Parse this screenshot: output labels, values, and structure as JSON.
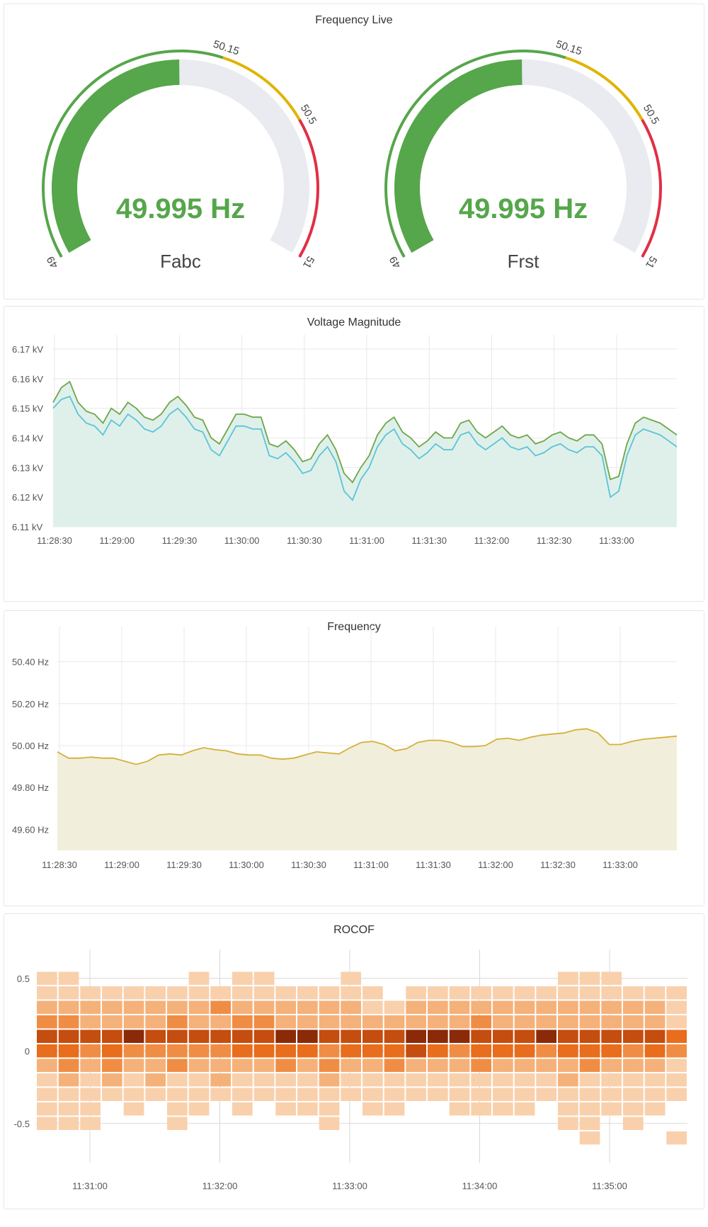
{
  "panels": {
    "gauges": {
      "title": "Frequency Live",
      "items": [
        {
          "name": "Fabc",
          "value_text": "49.995 Hz",
          "value": 49.995
        },
        {
          "name": "Frst",
          "value_text": "49.995 Hz",
          "value": 49.995
        }
      ],
      "min": 49,
      "max": 51,
      "thresholds": [
        {
          "from": 49,
          "to": 50.15,
          "color": "#56a64b"
        },
        {
          "from": 50.15,
          "to": 50.5,
          "color": "#e0b400"
        },
        {
          "from": 50.5,
          "to": 51,
          "color": "#e02f44"
        }
      ],
      "tick_labels": [
        {
          "value": 49,
          "text": "49"
        },
        {
          "value": 50.15,
          "text": "50.15"
        },
        {
          "value": 50.5,
          "text": "50.5"
        },
        {
          "value": 51,
          "text": "51"
        }
      ],
      "value_color": "#56a64b",
      "track_color": "#e9ebf0"
    },
    "voltage": {
      "title": "Voltage Magnitude"
    },
    "frequency": {
      "title": "Frequency"
    },
    "rocof": {
      "title": "ROCOF"
    }
  },
  "chart_data": [
    {
      "type": "line",
      "title": "Voltage Magnitude",
      "x_tick_labels": [
        "11:28:30",
        "11:29:00",
        "11:29:30",
        "11:30:00",
        "11:30:30",
        "11:31:00",
        "11:31:30",
        "11:32:00",
        "11:32:30",
        "11:33:00"
      ],
      "y_tick_labels": [
        "6.11 kV",
        "6.12 kV",
        "6.13 kV",
        "6.14 kV",
        "6.15 kV",
        "6.16 kV",
        "6.17 kV"
      ],
      "ylim": [
        6.11,
        6.17
      ],
      "grid": true,
      "fill": "#dff0ea",
      "series": [
        {
          "color": "#6ea64a",
          "values": [
            6.152,
            6.157,
            6.159,
            6.152,
            6.149,
            6.148,
            6.145,
            6.15,
            6.148,
            6.152,
            6.15,
            6.147,
            6.146,
            6.148,
            6.152,
            6.154,
            6.151,
            6.147,
            6.146,
            6.14,
            6.138,
            6.143,
            6.148,
            6.148,
            6.147,
            6.147,
            6.138,
            6.137,
            6.139,
            6.136,
            6.132,
            6.133,
            6.138,
            6.141,
            6.136,
            6.128,
            6.125,
            6.13,
            6.134,
            6.141,
            6.145,
            6.147,
            6.142,
            6.14,
            6.137,
            6.139,
            6.142,
            6.14,
            6.14,
            6.145,
            6.146,
            6.142,
            6.14,
            6.142,
            6.144,
            6.141,
            6.14,
            6.141,
            6.138,
            6.139,
            6.141,
            6.142,
            6.14,
            6.139,
            6.141,
            6.141,
            6.138,
            6.126,
            6.127,
            6.138,
            6.145,
            6.147,
            6.146,
            6.145,
            6.143,
            6.141
          ]
        },
        {
          "color": "#5bc4d6",
          "values": [
            6.15,
            6.153,
            6.154,
            6.148,
            6.145,
            6.144,
            6.141,
            6.146,
            6.144,
            6.148,
            6.146,
            6.143,
            6.142,
            6.144,
            6.148,
            6.15,
            6.147,
            6.143,
            6.142,
            6.136,
            6.134,
            6.139,
            6.144,
            6.144,
            6.143,
            6.143,
            6.134,
            6.133,
            6.135,
            6.132,
            6.128,
            6.129,
            6.134,
            6.137,
            6.132,
            6.122,
            6.119,
            6.126,
            6.13,
            6.137,
            6.141,
            6.143,
            6.138,
            6.136,
            6.133,
            6.135,
            6.138,
            6.136,
            6.136,
            6.141,
            6.142,
            6.138,
            6.136,
            6.138,
            6.14,
            6.137,
            6.136,
            6.137,
            6.134,
            6.135,
            6.137,
            6.138,
            6.136,
            6.135,
            6.137,
            6.137,
            6.134,
            6.12,
            6.122,
            6.134,
            6.141,
            6.143,
            6.142,
            6.141,
            6.139,
            6.137
          ]
        }
      ]
    },
    {
      "type": "area",
      "title": "Frequency",
      "x_tick_labels": [
        "11:28:30",
        "11:29:00",
        "11:29:30",
        "11:30:00",
        "11:30:30",
        "11:31:00",
        "11:31:30",
        "11:32:00",
        "11:32:30",
        "11:33:00"
      ],
      "y_tick_labels": [
        "49.60 Hz",
        "49.80 Hz",
        "50.00 Hz",
        "50.20 Hz",
        "50.40 Hz"
      ],
      "ylim": [
        49.5,
        50.5
      ],
      "grid": true,
      "fill": "#f1eedb",
      "series": [
        {
          "color": "#d4b13a",
          "values": [
            49.97,
            49.94,
            49.94,
            49.945,
            49.94,
            49.94,
            49.925,
            49.91,
            49.925,
            49.955,
            49.96,
            49.955,
            49.975,
            49.99,
            49.98,
            49.975,
            49.96,
            49.955,
            49.955,
            49.94,
            49.935,
            49.94,
            49.955,
            49.97,
            49.965,
            49.96,
            49.99,
            50.015,
            50.02,
            50.005,
            49.975,
            49.985,
            50.015,
            50.025,
            50.025,
            50.015,
            49.995,
            49.995,
            50.0,
            50.03,
            50.035,
            50.025,
            50.04,
            50.05,
            50.055,
            50.06,
            50.075,
            50.08,
            50.06,
            50.005,
            50.005,
            50.02,
            50.03,
            50.035,
            50.04,
            50.045
          ]
        }
      ]
    },
    {
      "type": "heatmap",
      "title": "ROCOF",
      "x_tick_labels": [
        "11:31:00",
        "11:32:00",
        "11:33:00",
        "11:34:00",
        "11:35:00"
      ],
      "y_tick_labels": [
        "0.5",
        "0",
        "-0.5"
      ],
      "ylim": [
        -0.65,
        0.65
      ],
      "color_scale": [
        "#fbe6d4",
        "#f9d0ac",
        "#f5b17a",
        "#f08d45",
        "#e86d1c",
        "#c54d0f",
        "#8a2a08"
      ],
      "columns": 30,
      "rows": [
        0.6,
        0.5,
        0.4,
        0.3,
        0.2,
        0.1,
        0.0,
        -0.1,
        -0.2,
        -0.3,
        -0.4,
        -0.5,
        -0.6
      ],
      "values": [
        [
          0,
          0,
          0,
          0,
          0,
          0,
          0,
          0,
          0,
          0,
          0,
          0,
          0,
          0,
          0,
          0,
          0,
          0,
          0,
          0,
          0,
          0,
          0,
          0,
          0,
          0,
          0,
          0,
          0,
          0
        ],
        [
          1,
          1,
          0,
          0,
          0,
          0,
          0,
          1,
          0,
          1,
          1,
          0,
          0,
          0,
          1,
          0,
          0,
          0,
          0,
          0,
          0,
          0,
          0,
          0,
          1,
          1,
          1,
          0,
          0,
          0
        ],
        [
          1,
          1,
          1,
          1,
          1,
          1,
          1,
          1,
          1,
          1,
          1,
          1,
          1,
          1,
          1,
          1,
          0,
          1,
          1,
          1,
          1,
          1,
          1,
          1,
          1,
          1,
          1,
          1,
          1,
          1
        ],
        [
          2,
          2,
          2,
          2,
          2,
          2,
          2,
          2,
          3,
          2,
          2,
          2,
          2,
          2,
          2,
          1,
          1,
          2,
          2,
          2,
          2,
          2,
          2,
          2,
          2,
          2,
          2,
          2,
          2,
          1
        ],
        [
          3,
          3,
          2,
          2,
          2,
          2,
          3,
          2,
          2,
          3,
          3,
          2,
          2,
          2,
          2,
          2,
          2,
          2,
          2,
          2,
          3,
          2,
          2,
          2,
          2,
          2,
          2,
          2,
          2,
          1
        ],
        [
          5,
          5,
          5,
          5,
          6,
          5,
          5,
          5,
          5,
          5,
          5,
          6,
          6,
          5,
          5,
          5,
          5,
          6,
          6,
          6,
          5,
          5,
          5,
          6,
          5,
          5,
          5,
          5,
          5,
          4
        ],
        [
          4,
          4,
          3,
          4,
          3,
          3,
          3,
          3,
          3,
          4,
          4,
          4,
          4,
          3,
          4,
          4,
          4,
          5,
          4,
          3,
          4,
          4,
          4,
          3,
          4,
          4,
          4,
          3,
          4,
          3
        ],
        [
          2,
          3,
          2,
          3,
          2,
          2,
          3,
          2,
          2,
          2,
          2,
          3,
          2,
          3,
          2,
          2,
          3,
          2,
          2,
          2,
          3,
          2,
          2,
          2,
          2,
          3,
          2,
          2,
          2,
          1
        ],
        [
          1,
          2,
          1,
          2,
          1,
          2,
          1,
          1,
          2,
          1,
          1,
          1,
          1,
          2,
          1,
          1,
          1,
          1,
          1,
          1,
          1,
          1,
          1,
          1,
          2,
          1,
          1,
          1,
          1,
          1
        ],
        [
          1,
          1,
          1,
          1,
          1,
          1,
          1,
          1,
          1,
          1,
          1,
          1,
          1,
          1,
          1,
          1,
          1,
          1,
          1,
          1,
          1,
          1,
          1,
          1,
          1,
          1,
          1,
          1,
          1,
          1
        ],
        [
          1,
          1,
          1,
          0,
          1,
          0,
          1,
          1,
          0,
          1,
          0,
          1,
          1,
          1,
          0,
          1,
          1,
          0,
          0,
          1,
          1,
          1,
          1,
          0,
          1,
          1,
          1,
          1,
          1,
          0
        ],
        [
          1,
          1,
          1,
          0,
          0,
          0,
          1,
          0,
          0,
          0,
          0,
          0,
          0,
          1,
          0,
          0,
          0,
          0,
          0,
          0,
          0,
          0,
          0,
          0,
          1,
          1,
          0,
          1,
          0,
          0
        ],
        [
          0,
          0,
          0,
          0,
          0,
          0,
          0,
          0,
          0,
          0,
          0,
          0,
          0,
          0,
          0,
          0,
          0,
          0,
          0,
          0,
          0,
          0,
          0,
          0,
          0,
          1,
          0,
          0,
          0,
          1
        ]
      ]
    }
  ]
}
